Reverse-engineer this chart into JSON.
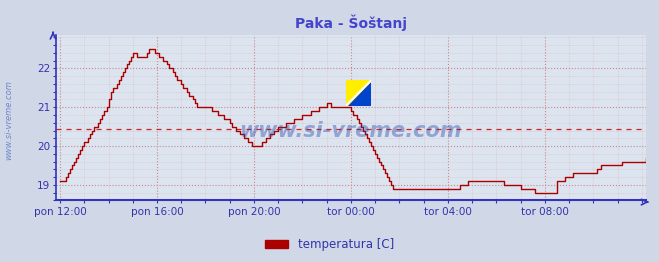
{
  "title": "Paka - Šoštanj",
  "title_color": "#4444cc",
  "bg_color": "#d0d8e8",
  "plot_bg_color": "#dce4f0",
  "grid_color_major": "#cc8888",
  "grid_color_minor": "#ddbbbb",
  "line_color": "#aa0000",
  "axis_color": "#3333bb",
  "tick_label_color": "#3333aa",
  "watermark_text": "www.si-vreme.com",
  "watermark_color": "#2244aa",
  "legend_label": "temperatura [C]",
  "legend_color": "#aa0000",
  "x_tick_labels": [
    "pon 12:00",
    "pon 16:00",
    "pon 20:00",
    "tor 00:00",
    "tor 04:00",
    "tor 08:00"
  ],
  "x_tick_positions": [
    0,
    48,
    96,
    144,
    192,
    240
  ],
  "ylim": [
    18.6,
    22.85
  ],
  "xlim": [
    -2,
    290
  ],
  "yticks": [
    19,
    20,
    21,
    22
  ],
  "avg_line_y": 20.44,
  "avg_line_color": "#cc2222",
  "temperature_data": [
    19.1,
    19.1,
    19.1,
    19.2,
    19.3,
    19.4,
    19.5,
    19.6,
    19.7,
    19.8,
    19.9,
    20.0,
    20.1,
    20.1,
    20.2,
    20.3,
    20.4,
    20.5,
    20.5,
    20.6,
    20.7,
    20.8,
    20.9,
    21.0,
    21.2,
    21.4,
    21.5,
    21.5,
    21.6,
    21.7,
    21.8,
    21.9,
    22.0,
    22.1,
    22.2,
    22.3,
    22.4,
    22.4,
    22.3,
    22.3,
    22.3,
    22.3,
    22.3,
    22.4,
    22.5,
    22.5,
    22.5,
    22.4,
    22.4,
    22.3,
    22.3,
    22.2,
    22.2,
    22.1,
    22.0,
    22.0,
    21.9,
    21.8,
    21.7,
    21.7,
    21.6,
    21.5,
    21.5,
    21.4,
    21.3,
    21.3,
    21.2,
    21.1,
    21.0,
    21.0,
    21.0,
    21.0,
    21.0,
    21.0,
    21.0,
    20.9,
    20.9,
    20.9,
    20.8,
    20.8,
    20.8,
    20.7,
    20.7,
    20.7,
    20.6,
    20.5,
    20.5,
    20.4,
    20.4,
    20.3,
    20.3,
    20.2,
    20.2,
    20.1,
    20.1,
    20.0,
    20.0,
    20.0,
    20.0,
    20.0,
    20.1,
    20.1,
    20.2,
    20.2,
    20.3,
    20.3,
    20.4,
    20.4,
    20.5,
    20.5,
    20.5,
    20.5,
    20.6,
    20.6,
    20.6,
    20.6,
    20.7,
    20.7,
    20.7,
    20.7,
    20.8,
    20.8,
    20.8,
    20.8,
    20.9,
    20.9,
    20.9,
    20.9,
    21.0,
    21.0,
    21.0,
    21.0,
    21.1,
    21.1,
    21.0,
    21.0,
    21.0,
    21.0,
    21.0,
    21.0,
    21.0,
    21.0,
    21.0,
    21.0,
    20.9,
    20.8,
    20.8,
    20.7,
    20.6,
    20.5,
    20.4,
    20.3,
    20.2,
    20.1,
    20.0,
    19.9,
    19.8,
    19.7,
    19.6,
    19.5,
    19.4,
    19.3,
    19.2,
    19.1,
    19.0,
    18.9,
    18.9,
    18.9,
    18.9,
    18.9,
    18.9,
    18.9,
    18.9,
    18.9,
    18.9,
    18.9,
    18.9,
    18.9,
    18.9,
    18.9,
    18.9,
    18.9,
    18.9,
    18.9,
    18.9,
    18.9,
    18.9,
    18.9,
    18.9,
    18.9,
    18.9,
    18.9,
    18.9,
    18.9,
    18.9,
    18.9,
    18.9,
    18.9,
    19.0,
    19.0,
    19.0,
    19.0,
    19.1,
    19.1,
    19.1,
    19.1,
    19.1,
    19.1,
    19.1,
    19.1,
    19.1,
    19.1,
    19.1,
    19.1,
    19.1,
    19.1,
    19.1,
    19.1,
    19.1,
    19.1,
    19.0,
    19.0,
    19.0,
    19.0,
    19.0,
    19.0,
    19.0,
    19.0,
    18.9,
    18.9,
    18.9,
    18.9,
    18.9,
    18.9,
    18.9,
    18.8,
    18.8,
    18.8,
    18.8,
    18.8,
    18.8,
    18.8,
    18.8,
    18.8,
    18.8,
    18.8,
    19.1,
    19.1,
    19.1,
    19.1,
    19.2,
    19.2,
    19.2,
    19.2,
    19.3,
    19.3,
    19.3,
    19.3,
    19.3,
    19.3,
    19.3,
    19.3,
    19.3,
    19.3,
    19.3,
    19.3,
    19.4,
    19.4,
    19.5,
    19.5,
    19.5,
    19.5,
    19.5,
    19.5,
    19.5,
    19.5,
    19.5,
    19.5,
    19.6,
    19.6,
    19.6,
    19.6,
    19.6,
    19.6,
    19.6,
    19.6,
    19.6,
    19.6,
    19.6,
    19.6,
    19.7
  ]
}
